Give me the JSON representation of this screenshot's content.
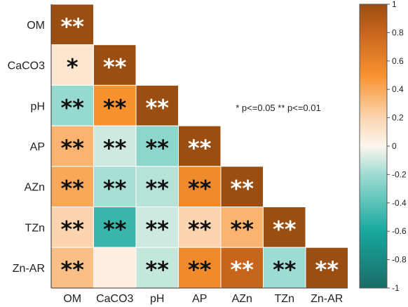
{
  "chart_data": {
    "type": "heatmap",
    "variables": [
      "OM",
      "CaCO3",
      "pH",
      "AP",
      "AZn",
      "TZn",
      "Zn-AR"
    ],
    "cells": [
      {
        "row": "OM",
        "col": "OM",
        "value": 1.0,
        "sig": "**"
      },
      {
        "row": "CaCO3",
        "col": "OM",
        "value": 0.1,
        "sig": "*"
      },
      {
        "row": "CaCO3",
        "col": "CaCO3",
        "value": 1.0,
        "sig": "**"
      },
      {
        "row": "pH",
        "col": "OM",
        "value": -0.22,
        "sig": "**"
      },
      {
        "row": "pH",
        "col": "CaCO3",
        "value": 0.5,
        "sig": "**"
      },
      {
        "row": "pH",
        "col": "pH",
        "value": 1.0,
        "sig": "**"
      },
      {
        "row": "AP",
        "col": "OM",
        "value": 0.35,
        "sig": "**"
      },
      {
        "row": "AP",
        "col": "CaCO3",
        "value": -0.1,
        "sig": "**"
      },
      {
        "row": "AP",
        "col": "pH",
        "value": -0.25,
        "sig": "**"
      },
      {
        "row": "AP",
        "col": "AP",
        "value": 1.0,
        "sig": "**"
      },
      {
        "row": "AZn",
        "col": "OM",
        "value": 0.4,
        "sig": "**"
      },
      {
        "row": "AZn",
        "col": "CaCO3",
        "value": -0.18,
        "sig": "**"
      },
      {
        "row": "AZn",
        "col": "pH",
        "value": -0.15,
        "sig": "**"
      },
      {
        "row": "AZn",
        "col": "AP",
        "value": 0.55,
        "sig": "**"
      },
      {
        "row": "AZn",
        "col": "AZn",
        "value": 1.0,
        "sig": "**"
      },
      {
        "row": "TZn",
        "col": "OM",
        "value": 0.2,
        "sig": "**"
      },
      {
        "row": "TZn",
        "col": "CaCO3",
        "value": -0.5,
        "sig": "**"
      },
      {
        "row": "TZn",
        "col": "pH",
        "value": -0.1,
        "sig": "**"
      },
      {
        "row": "TZn",
        "col": "AP",
        "value": 0.2,
        "sig": "**"
      },
      {
        "row": "TZn",
        "col": "AZn",
        "value": 0.35,
        "sig": "**"
      },
      {
        "row": "TZn",
        "col": "TZn",
        "value": 1.0,
        "sig": "**"
      },
      {
        "row": "Zn-AR",
        "col": "OM",
        "value": 0.3,
        "sig": "**"
      },
      {
        "row": "Zn-AR",
        "col": "CaCO3",
        "value": 0.05,
        "sig": ""
      },
      {
        "row": "Zn-AR",
        "col": "pH",
        "value": -0.12,
        "sig": "**"
      },
      {
        "row": "Zn-AR",
        "col": "AP",
        "value": 0.55,
        "sig": "**"
      },
      {
        "row": "Zn-AR",
        "col": "AZn",
        "value": 0.8,
        "sig": "**"
      },
      {
        "row": "Zn-AR",
        "col": "TZn",
        "value": -0.2,
        "sig": "**"
      },
      {
        "row": "Zn-AR",
        "col": "Zn-AR",
        "value": 1.0,
        "sig": "**"
      }
    ],
    "legend_note": "* p<=0.05  ** p<=0.01",
    "colorbar": {
      "range": [
        -1,
        1
      ],
      "ticks": [
        "1",
        "0.8",
        "0.6",
        "0.4",
        "0.2",
        "0",
        "-0.2",
        "-0.4",
        "-0.6",
        "-0.8",
        "-1"
      ],
      "color_stops": [
        {
          "value": -1.0,
          "color": "#1a6b66"
        },
        {
          "value": -0.6,
          "color": "#18a89e"
        },
        {
          "value": -0.2,
          "color": "#9ddcd2"
        },
        {
          "value": 0.0,
          "color": "#fdf6ee"
        },
        {
          "value": 0.2,
          "color": "#fcd5b0"
        },
        {
          "value": 0.5,
          "color": "#f7922f"
        },
        {
          "value": 0.8,
          "color": "#c8651d"
        },
        {
          "value": 1.0,
          "color": "#9a4e12"
        }
      ]
    },
    "colors": {
      "axis": "#333333",
      "label": "#222222",
      "light_star": "#ffffff",
      "dark_star": "#111111"
    }
  }
}
